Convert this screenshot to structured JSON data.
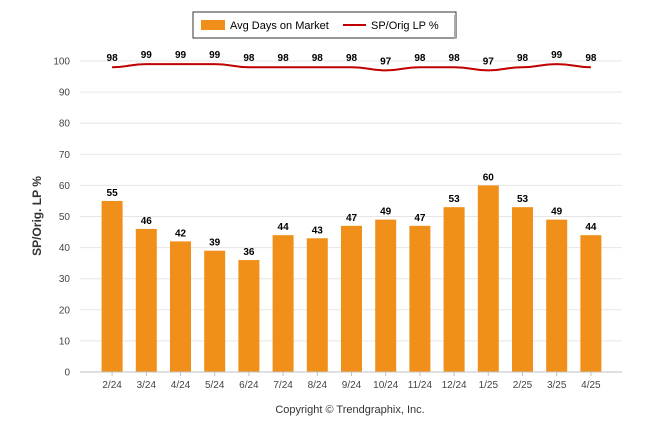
{
  "chart_data": {
    "type": "bar",
    "categories": [
      "2/24",
      "3/24",
      "4/24",
      "5/24",
      "6/24",
      "7/24",
      "8/24",
      "9/24",
      "10/24",
      "11/24",
      "12/24",
      "1/25",
      "2/25",
      "3/25",
      "4/25"
    ],
    "series": [
      {
        "name": "Avg Days on Market",
        "type": "bar",
        "color": "#f0901a",
        "values": [
          55,
          46,
          42,
          39,
          36,
          44,
          43,
          47,
          49,
          47,
          53,
          60,
          53,
          49,
          44
        ]
      },
      {
        "name": "SP/Orig LP %",
        "type": "line",
        "color": "#c00000",
        "values": [
          98,
          99,
          99,
          99,
          98,
          98,
          98,
          98,
          97,
          98,
          98,
          97,
          98,
          99,
          98
        ]
      }
    ],
    "ylabel": "SP/Orig. LP %",
    "ylim": [
      0,
      100
    ],
    "yticks": [
      0,
      10,
      20,
      30,
      40,
      50,
      60,
      70,
      80,
      90,
      100
    ],
    "grid": true,
    "legend": "top-center"
  },
  "footer": {
    "copyright": "Copyright © Trendgraphix, Inc."
  }
}
